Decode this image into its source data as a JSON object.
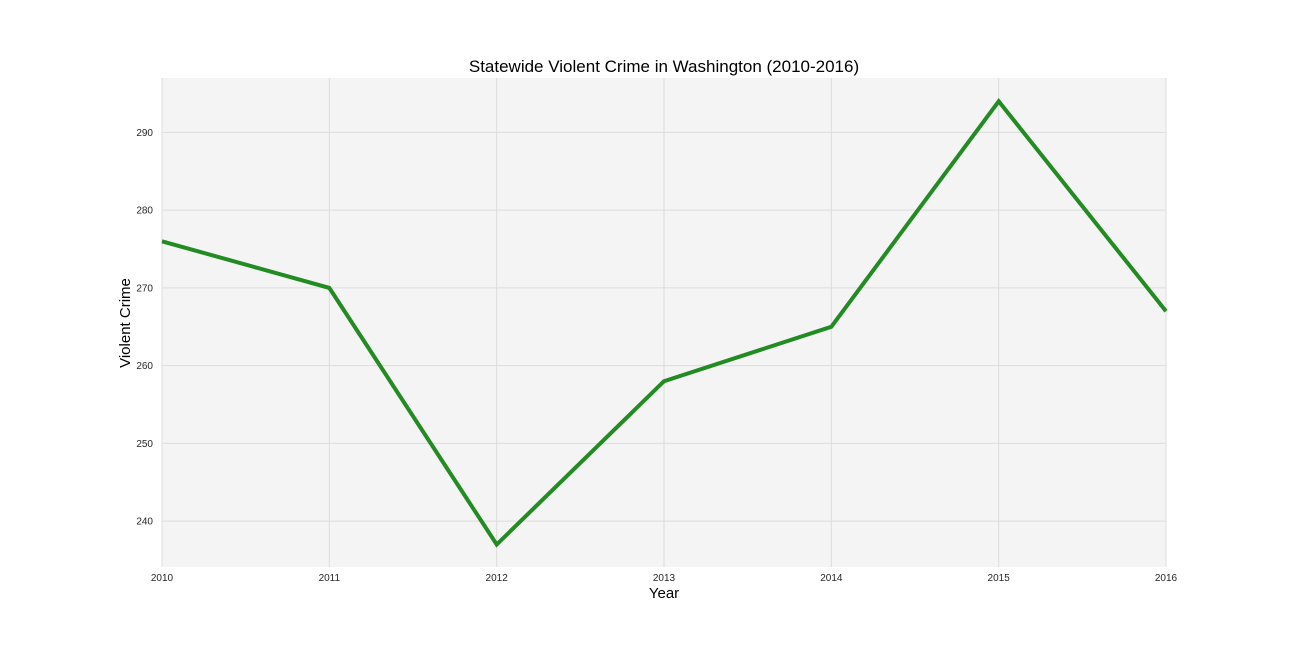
{
  "chart_data": {
    "type": "line",
    "title": "Statewide Violent Crime in Washington (2010-2016)",
    "xlabel": "Year",
    "ylabel": "Violent Crime",
    "x": [
      2010,
      2011,
      2012,
      2013,
      2014,
      2015,
      2016
    ],
    "x_tick_labels": [
      "2010",
      "2011",
      "2012",
      "2013",
      "2014",
      "2015",
      "2016"
    ],
    "y_ticks": [
      240,
      250,
      260,
      270,
      280,
      290
    ],
    "y_tick_labels": [
      "240",
      "250",
      "260",
      "270",
      "280",
      "290"
    ],
    "xlim": [
      2010,
      2016
    ],
    "ylim": [
      234.1,
      297.0
    ],
    "grid": true,
    "legend": "none",
    "series": [
      {
        "values": [
          276,
          270,
          237,
          258,
          265,
          294,
          267
        ],
        "color": "#228b22"
      }
    ],
    "colors": {
      "plot_background": "#f4f4f4",
      "grid": "#dcdcdc",
      "line": "#228b22"
    }
  }
}
